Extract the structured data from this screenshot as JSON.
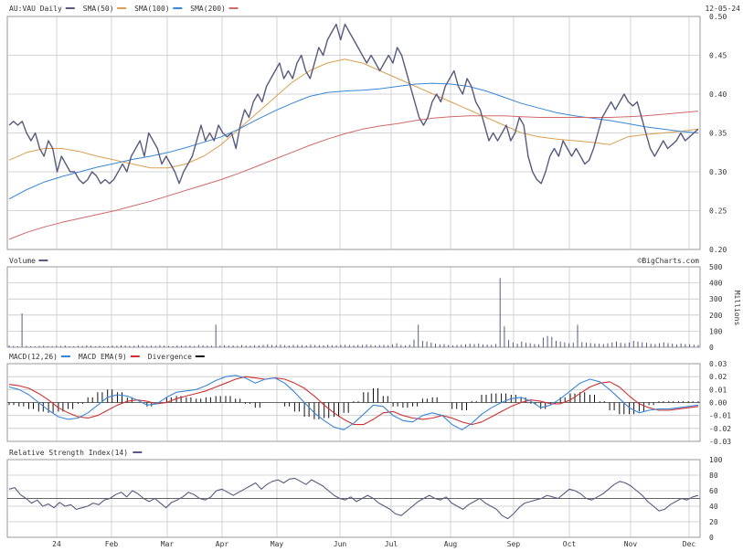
{
  "date": "12-05-24",
  "credit": "©BigCharts.com",
  "volume_unit": "Millions",
  "colors": {
    "price": "#5a5a80",
    "sma50": "#d9a050",
    "sma100": "#3a86d8",
    "sma200": "#d06a6a",
    "macd": "#3a86d8",
    "ema": "#d03030",
    "divergence": "#111111",
    "grid": "#c8c8c8",
    "frame": "#9a9a9a"
  },
  "chart_data": [
    {
      "type": "line",
      "panel": "price",
      "legend": [
        {
          "label": "AU:VAU Daily",
          "swatch": "#5a5a80"
        },
        {
          "label": "SMA(50)",
          "swatch": "#d9a050"
        },
        {
          "label": "SMA(100)",
          "swatch": "#3a86d8"
        },
        {
          "label": "SMA(200)",
          "swatch": "#d06a6a"
        }
      ],
      "ylim": [
        0.2,
        0.5
      ],
      "yticks": [
        "0.50",
        "0.45",
        "0.40",
        "0.35",
        "0.30",
        "0.25",
        "0.20"
      ],
      "series": [
        {
          "key": "price",
          "color": "#5a5a80",
          "values": [
            0.36,
            0.365,
            0.36,
            0.365,
            0.35,
            0.34,
            0.35,
            0.33,
            0.32,
            0.34,
            0.33,
            0.3,
            0.32,
            0.31,
            0.3,
            0.3,
            0.29,
            0.285,
            0.29,
            0.3,
            0.295,
            0.285,
            0.29,
            0.285,
            0.29,
            0.3,
            0.31,
            0.3,
            0.32,
            0.33,
            0.34,
            0.32,
            0.35,
            0.34,
            0.33,
            0.31,
            0.32,
            0.31,
            0.3,
            0.285,
            0.3,
            0.31,
            0.32,
            0.34,
            0.36,
            0.34,
            0.35,
            0.34,
            0.36,
            0.35,
            0.345,
            0.35,
            0.33,
            0.36,
            0.38,
            0.37,
            0.39,
            0.4,
            0.39,
            0.41,
            0.42,
            0.43,
            0.44,
            0.42,
            0.43,
            0.42,
            0.44,
            0.45,
            0.43,
            0.42,
            0.44,
            0.46,
            0.45,
            0.47,
            0.48,
            0.49,
            0.47,
            0.49,
            0.48,
            0.47,
            0.46,
            0.45,
            0.44,
            0.45,
            0.44,
            0.43,
            0.44,
            0.45,
            0.44,
            0.46,
            0.45,
            0.43,
            0.41,
            0.39,
            0.37,
            0.36,
            0.37,
            0.39,
            0.4,
            0.39,
            0.41,
            0.42,
            0.43,
            0.41,
            0.4,
            0.42,
            0.41,
            0.39,
            0.38,
            0.36,
            0.34,
            0.35,
            0.34,
            0.35,
            0.36,
            0.34,
            0.35,
            0.37,
            0.36,
            0.32,
            0.3,
            0.29,
            0.285,
            0.3,
            0.32,
            0.33,
            0.32,
            0.34,
            0.33,
            0.32,
            0.33,
            0.32,
            0.31,
            0.315,
            0.33,
            0.35,
            0.37,
            0.38,
            0.39,
            0.38,
            0.39,
            0.4,
            0.39,
            0.385,
            0.39,
            0.37,
            0.35,
            0.33,
            0.32,
            0.33,
            0.34,
            0.33,
            0.335,
            0.34,
            0.35,
            0.34,
            0.345,
            0.35,
            0.355
          ]
        },
        {
          "key": "sma50",
          "color": "#d9a050",
          "values": [
            0.315,
            0.325,
            0.33,
            0.33,
            0.326,
            0.32,
            0.315,
            0.31,
            0.305,
            0.305,
            0.31,
            0.32,
            0.335,
            0.355,
            0.375,
            0.395,
            0.415,
            0.43,
            0.44,
            0.445,
            0.44,
            0.43,
            0.42,
            0.41,
            0.4,
            0.39,
            0.38,
            0.37,
            0.36,
            0.35,
            0.345,
            0.342,
            0.34,
            0.338,
            0.335,
            0.345,
            0.348,
            0.35,
            0.352,
            0.355
          ]
        },
        {
          "key": "sma100",
          "color": "#3a86d8",
          "values": [
            0.265,
            0.277,
            0.287,
            0.294,
            0.3,
            0.306,
            0.311,
            0.316,
            0.32,
            0.325,
            0.331,
            0.338,
            0.345,
            0.355,
            0.367,
            0.378,
            0.388,
            0.397,
            0.402,
            0.404,
            0.405,
            0.407,
            0.41,
            0.413,
            0.414,
            0.413,
            0.41,
            0.404,
            0.396,
            0.388,
            0.382,
            0.376,
            0.372,
            0.369,
            0.366,
            0.362,
            0.358,
            0.355,
            0.352,
            0.35
          ]
        },
        {
          "key": "sma200",
          "color": "#d06a6a",
          "values": [
            0.213,
            0.222,
            0.229,
            0.235,
            0.24,
            0.245,
            0.25,
            0.256,
            0.262,
            0.269,
            0.276,
            0.283,
            0.29,
            0.298,
            0.307,
            0.316,
            0.325,
            0.334,
            0.342,
            0.349,
            0.355,
            0.359,
            0.362,
            0.366,
            0.369,
            0.371,
            0.372,
            0.372,
            0.372,
            0.371,
            0.37,
            0.37,
            0.37,
            0.37,
            0.37,
            0.371,
            0.372,
            0.374,
            0.376,
            0.378
          ]
        }
      ]
    },
    {
      "type": "bar",
      "panel": "volume",
      "legend": [
        {
          "label": "Volume",
          "swatch": "#5a5a80"
        }
      ],
      "ylim": [
        0,
        500
      ],
      "yticks": [
        "500",
        "400",
        "300",
        "200",
        "100",
        "0"
      ],
      "ylabel": "Millions",
      "values": [
        12,
        8,
        6,
        210,
        9,
        7,
        5,
        8,
        10,
        6,
        7,
        9,
        8,
        11,
        6,
        7,
        9,
        8,
        12,
        10,
        6,
        9,
        7,
        8,
        11,
        9,
        12,
        10,
        8,
        9,
        14,
        12,
        9,
        10,
        8,
        13,
        11,
        9,
        7,
        12,
        10,
        9,
        11,
        8,
        14,
        12,
        10,
        9,
        140,
        11,
        13,
        10,
        12,
        9,
        14,
        11,
        10,
        13,
        12,
        15,
        18,
        14,
        12,
        16,
        13,
        11,
        15,
        14,
        13,
        12,
        16,
        14,
        13,
        12,
        15,
        13,
        12,
        14,
        16,
        13,
        12,
        15,
        14,
        17,
        15,
        12,
        14,
        16,
        13,
        18,
        25,
        14,
        12,
        16,
        48,
        140,
        40,
        35,
        28,
        22,
        18,
        20,
        15,
        12,
        14,
        16,
        18,
        22,
        20,
        24,
        18,
        16,
        14,
        20,
        430,
        130,
        45,
        30,
        22,
        35,
        28,
        25,
        20,
        18,
        60,
        70,
        65,
        40,
        35,
        30,
        25,
        28,
        140,
        32,
        28,
        26,
        24,
        22,
        20,
        25,
        30,
        35,
        28,
        25,
        30,
        40,
        35,
        30,
        28,
        22,
        20,
        25,
        30,
        26,
        22,
        18,
        24,
        20,
        18,
        16,
        14
      ]
    },
    {
      "type": "line",
      "panel": "macd",
      "legend": [
        {
          "label": "MACD(12,26)",
          "swatch": "#3a86d8"
        },
        {
          "label": "MACD EMA(9)",
          "swatch": "#d03030"
        },
        {
          "label": "Divergence",
          "swatch": "#111111"
        }
      ],
      "ylim": [
        -0.03,
        0.03
      ],
      "yticks": [
        "0.03",
        "0.02",
        "0.01",
        "0.00",
        "-0.01",
        "-0.02",
        "-0.03"
      ],
      "series": [
        {
          "key": "macd",
          "color": "#3a86d8",
          "values": [
            0.012,
            0.01,
            0.006,
            0.0,
            -0.006,
            -0.011,
            -0.013,
            -0.012,
            -0.008,
            -0.002,
            0.004,
            0.006,
            0.005,
            0.002,
            -0.002,
            -0.001,
            0.004,
            0.008,
            0.009,
            0.01,
            0.013,
            0.017,
            0.02,
            0.021,
            0.019,
            0.015,
            0.018,
            0.019,
            0.015,
            0.008,
            0.0,
            -0.008,
            -0.014,
            -0.019,
            -0.021,
            -0.016,
            -0.009,
            -0.002,
            -0.003,
            -0.01,
            -0.014,
            -0.015,
            -0.01,
            -0.008,
            -0.01,
            -0.017,
            -0.021,
            -0.016,
            -0.009,
            -0.004,
            0.0,
            0.003,
            0.004,
            0.001,
            -0.004,
            -0.002,
            0.003,
            0.009,
            0.015,
            0.018,
            0.016,
            0.01,
            0.003,
            -0.004,
            -0.008,
            -0.006,
            -0.005,
            -0.005,
            -0.004,
            -0.003,
            -0.002
          ]
        },
        {
          "key": "ema",
          "color": "#d03030",
          "values": [
            0.014,
            0.013,
            0.011,
            0.007,
            0.002,
            -0.004,
            -0.008,
            -0.011,
            -0.012,
            -0.01,
            -0.006,
            -0.002,
            0.001,
            0.002,
            0.001,
            -0.001,
            0.0,
            0.003,
            0.005,
            0.007,
            0.009,
            0.012,
            0.015,
            0.018,
            0.02,
            0.019,
            0.018,
            0.019,
            0.018,
            0.015,
            0.011,
            0.005,
            -0.002,
            -0.008,
            -0.013,
            -0.017,
            -0.017,
            -0.013,
            -0.008,
            -0.007,
            -0.01,
            -0.012,
            -0.013,
            -0.012,
            -0.01,
            -0.012,
            -0.015,
            -0.017,
            -0.015,
            -0.011,
            -0.007,
            -0.003,
            0.0,
            0.002,
            0.001,
            -0.001,
            -0.001,
            0.002,
            0.007,
            0.012,
            0.015,
            0.016,
            0.012,
            0.005,
            -0.001,
            -0.004,
            -0.006,
            -0.006,
            -0.005,
            -0.004,
            -0.003
          ]
        },
        {
          "key": "divergence",
          "color": "#111111",
          "values": [
            -0.002,
            -0.003,
            -0.005,
            -0.007,
            -0.008,
            -0.007,
            -0.005,
            -0.001,
            0.004,
            0.008,
            0.01,
            0.008,
            0.004,
            0.0,
            -0.003,
            0.0,
            0.004,
            0.005,
            0.004,
            0.003,
            0.004,
            0.005,
            0.005,
            0.003,
            -0.001,
            -0.004,
            0.0,
            0.0,
            -0.003,
            -0.007,
            -0.011,
            -0.013,
            -0.012,
            -0.011,
            -0.008,
            0.001,
            0.008,
            0.011,
            0.005,
            -0.003,
            -0.004,
            -0.003,
            0.003,
            0.004,
            0.0,
            -0.005,
            -0.006,
            0.001,
            0.006,
            0.007,
            0.007,
            0.006,
            0.004,
            -0.001,
            -0.005,
            -0.001,
            0.004,
            0.007,
            0.008,
            0.006,
            0.001,
            -0.006,
            -0.009,
            -0.009,
            -0.007,
            -0.002,
            0.001,
            0.001,
            0.001,
            0.001,
            0.001
          ]
        }
      ]
    },
    {
      "type": "line",
      "panel": "rsi",
      "legend": [
        {
          "label": "Relative Strength Index(14)",
          "swatch": "#5a5a80"
        }
      ],
      "ylim": [
        0,
        100
      ],
      "yticks": [
        "100",
        "80",
        "60",
        "40",
        "20",
        "0"
      ],
      "midline": 50,
      "series": [
        {
          "key": "rsi",
          "color": "#5a5a80",
          "values": [
            62,
            64,
            55,
            50,
            44,
            48,
            40,
            43,
            38,
            45,
            40,
            42,
            36,
            38,
            40,
            44,
            42,
            48,
            50,
            55,
            58,
            52,
            60,
            56,
            50,
            46,
            50,
            44,
            38,
            45,
            48,
            52,
            58,
            55,
            50,
            48,
            52,
            60,
            62,
            58,
            54,
            58,
            62,
            66,
            70,
            62,
            68,
            72,
            74,
            70,
            75,
            76,
            72,
            68,
            74,
            70,
            66,
            60,
            54,
            50,
            48,
            52,
            46,
            50,
            54,
            50,
            44,
            40,
            36,
            30,
            28,
            34,
            40,
            46,
            50,
            54,
            50,
            48,
            52,
            44,
            40,
            36,
            42,
            46,
            50,
            44,
            40,
            36,
            28,
            24,
            30,
            38,
            44,
            46,
            48,
            50,
            54,
            52,
            50,
            56,
            62,
            60,
            56,
            50,
            48,
            52,
            56,
            62,
            68,
            72,
            70,
            66,
            60,
            54,
            46,
            40,
            34,
            36,
            42,
            46,
            50,
            48,
            52,
            54
          ]
        }
      ]
    }
  ],
  "x_axis": {
    "labels": [
      "24",
      "Feb",
      "Mar",
      "Apr",
      "May",
      "Jun",
      "Jul",
      "Aug",
      "Sep",
      "Oct",
      "Nov",
      "Dec"
    ]
  }
}
